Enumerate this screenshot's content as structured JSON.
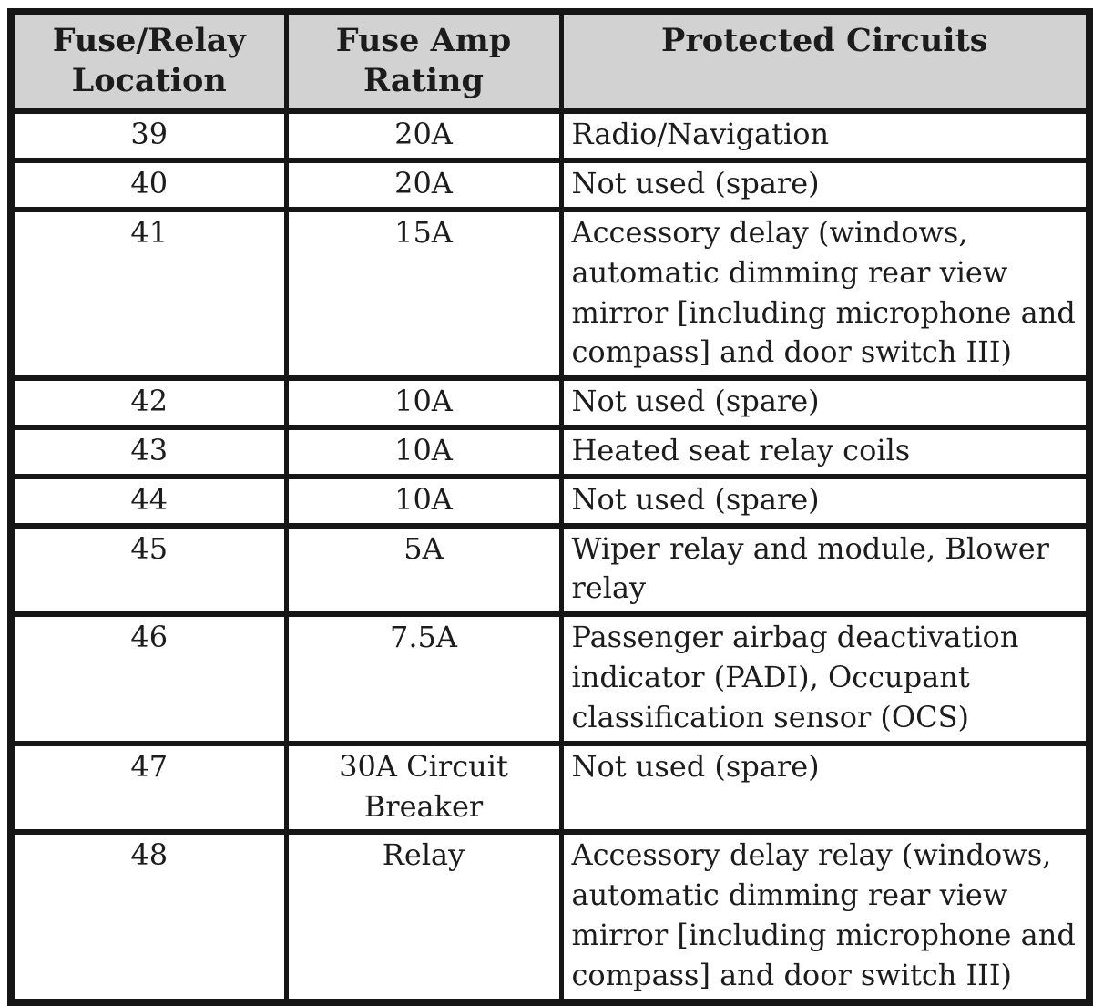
{
  "colors": {
    "header_bg": "#d2d2d2",
    "border": "#161616",
    "text": "#1c1c1c",
    "page_bg": "#ffffff"
  },
  "table": {
    "headers": {
      "location": "Fuse/Relay Location",
      "rating": "Fuse Amp Rating",
      "circuits": "Protected Circuits"
    },
    "rows": [
      {
        "location": "39",
        "rating": "20A",
        "circuits": "Radio/Navigation"
      },
      {
        "location": "40",
        "rating": "20A",
        "circuits": "Not used (spare)"
      },
      {
        "location": "41",
        "rating": "15A",
        "circuits": "Accessory delay (windows, automatic dimming rear view mirror [including microphone and compass] and door switch III)"
      },
      {
        "location": "42",
        "rating": "10A",
        "circuits": "Not used (spare)"
      },
      {
        "location": "43",
        "rating": "10A",
        "circuits": "Heated seat relay coils"
      },
      {
        "location": "44",
        "rating": "10A",
        "circuits": "Not used (spare)"
      },
      {
        "location": "45",
        "rating": "5A",
        "circuits": "Wiper relay and module, Blower relay"
      },
      {
        "location": "46",
        "rating": "7.5A",
        "circuits": "Passenger airbag deactivation indicator (PADI), Occupant classification sensor (OCS)"
      },
      {
        "location": "47",
        "rating": "30A Circuit Breaker",
        "circuits": "Not used (spare)"
      },
      {
        "location": "48",
        "rating": "Relay",
        "circuits": "Accessory delay relay (windows, automatic dimming rear view mirror [including microphone and compass] and door switch III)"
      }
    ]
  }
}
